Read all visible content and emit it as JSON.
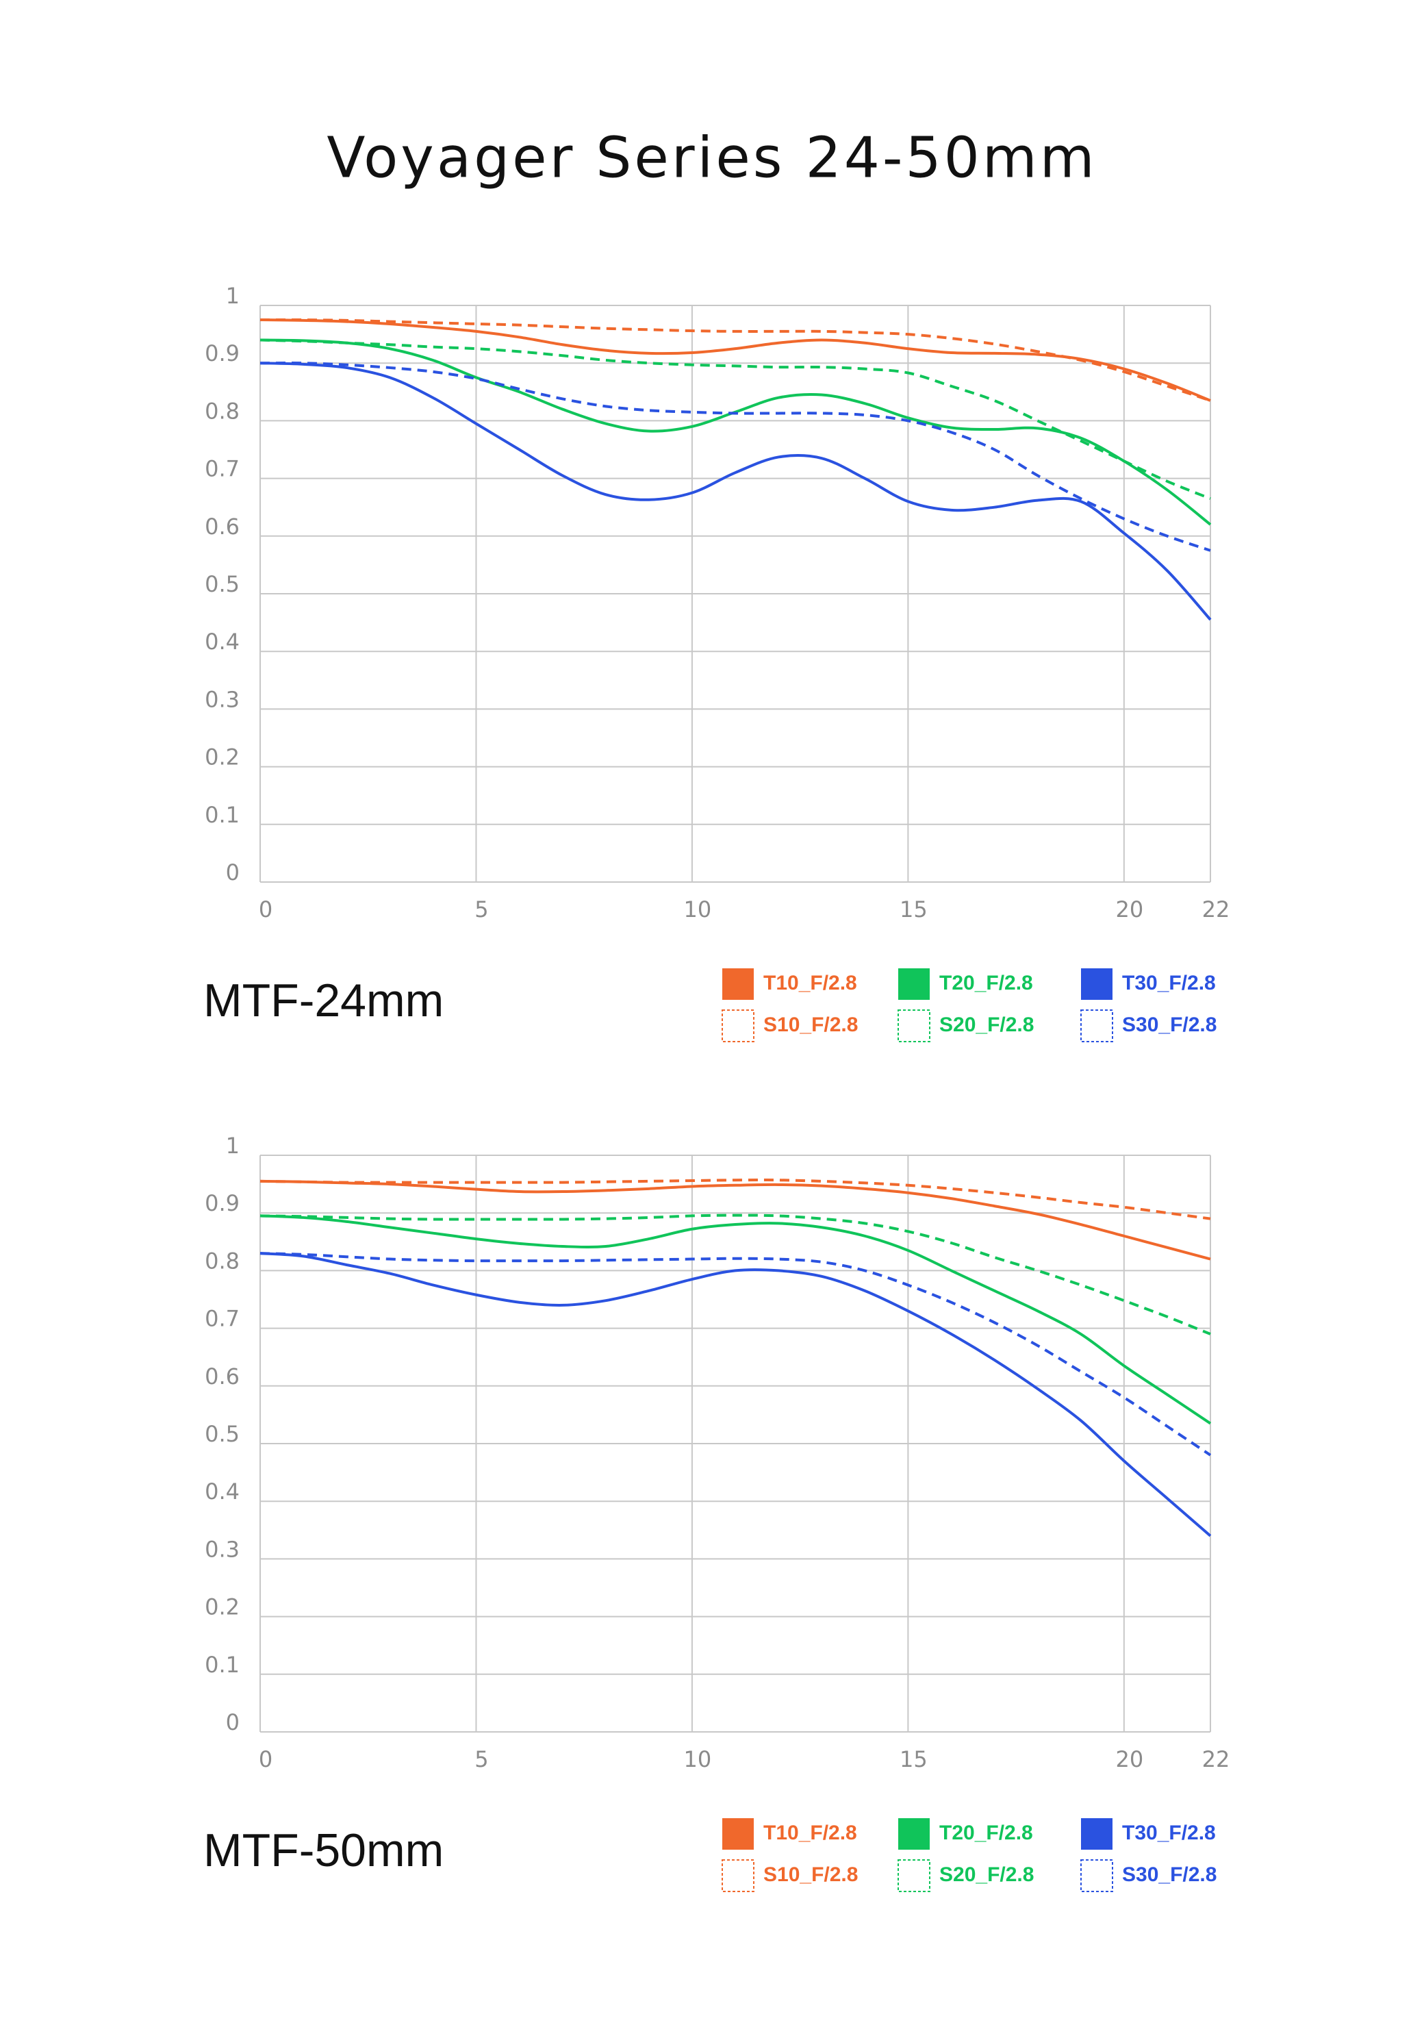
{
  "title": "Voyager Series 24-50mm",
  "chart_data": [
    {
      "type": "line",
      "title": "MTF-24mm",
      "x": [
        0,
        1,
        2,
        3,
        4,
        5,
        6,
        7,
        8,
        9,
        10,
        11,
        12,
        13,
        14,
        15,
        16,
        17,
        18,
        19,
        20,
        21,
        22
      ],
      "xlim": [
        0,
        22
      ],
      "xticks": [
        0,
        5,
        10,
        15,
        20,
        22
      ],
      "ylim": [
        0,
        1
      ],
      "yticks": [
        0,
        0.1,
        0.2,
        0.3,
        0.4,
        0.5,
        0.6,
        0.7,
        0.8,
        0.9,
        1
      ],
      "grid": true,
      "series": [
        {
          "name": "T10_F/2.8",
          "color": "#f0682c",
          "dashed": false,
          "values": [
            0.975,
            0.974,
            0.972,
            0.968,
            0.962,
            0.955,
            0.945,
            0.932,
            0.922,
            0.917,
            0.918,
            0.925,
            0.935,
            0.94,
            0.935,
            0.925,
            0.918,
            0.917,
            0.915,
            0.907,
            0.89,
            0.865,
            0.835
          ]
        },
        {
          "name": "S10_F/2.8",
          "color": "#f0682c",
          "dashed": true,
          "values": [
            0.975,
            0.975,
            0.974,
            0.972,
            0.97,
            0.968,
            0.966,
            0.963,
            0.96,
            0.958,
            0.956,
            0.955,
            0.955,
            0.955,
            0.953,
            0.95,
            0.943,
            0.933,
            0.92,
            0.905,
            0.885,
            0.86,
            0.835
          ]
        },
        {
          "name": "T20_F/2.8",
          "color": "#10c45a",
          "dashed": false,
          "values": [
            0.94,
            0.939,
            0.935,
            0.925,
            0.905,
            0.875,
            0.85,
            0.82,
            0.795,
            0.782,
            0.79,
            0.815,
            0.84,
            0.845,
            0.83,
            0.805,
            0.788,
            0.785,
            0.787,
            0.77,
            0.73,
            0.68,
            0.62
          ]
        },
        {
          "name": "S20_F/2.8",
          "color": "#10c45a",
          "dashed": true,
          "values": [
            0.94,
            0.938,
            0.935,
            0.932,
            0.928,
            0.925,
            0.92,
            0.913,
            0.905,
            0.9,
            0.897,
            0.895,
            0.893,
            0.893,
            0.89,
            0.883,
            0.86,
            0.835,
            0.8,
            0.765,
            0.73,
            0.695,
            0.665
          ]
        },
        {
          "name": "T30_F/2.8",
          "color": "#2a52e0",
          "dashed": false,
          "values": [
            0.9,
            0.898,
            0.892,
            0.875,
            0.84,
            0.795,
            0.75,
            0.705,
            0.672,
            0.663,
            0.675,
            0.71,
            0.737,
            0.735,
            0.7,
            0.66,
            0.645,
            0.65,
            0.662,
            0.66,
            0.605,
            0.54,
            0.455
          ]
        },
        {
          "name": "S30_F/2.8",
          "color": "#2a52e0",
          "dashed": true,
          "values": [
            0.9,
            0.9,
            0.897,
            0.892,
            0.885,
            0.873,
            0.855,
            0.838,
            0.825,
            0.818,
            0.815,
            0.813,
            0.813,
            0.813,
            0.81,
            0.8,
            0.78,
            0.75,
            0.705,
            0.665,
            0.63,
            0.6,
            0.575
          ]
        }
      ]
    },
    {
      "type": "line",
      "title": "MTF-50mm",
      "x": [
        0,
        1,
        2,
        3,
        4,
        5,
        6,
        7,
        8,
        9,
        10,
        11,
        12,
        13,
        14,
        15,
        16,
        17,
        18,
        19,
        20,
        21,
        22
      ],
      "xlim": [
        0,
        22
      ],
      "xticks": [
        0,
        5,
        10,
        15,
        20,
        22
      ],
      "ylim": [
        0,
        1
      ],
      "yticks": [
        0,
        0.1,
        0.2,
        0.3,
        0.4,
        0.5,
        0.6,
        0.7,
        0.8,
        0.9,
        1
      ],
      "grid": true,
      "series": [
        {
          "name": "T10_F/2.8",
          "color": "#f0682c",
          "dashed": false,
          "values": [
            0.955,
            0.954,
            0.952,
            0.95,
            0.946,
            0.941,
            0.937,
            0.937,
            0.939,
            0.942,
            0.946,
            0.948,
            0.949,
            0.947,
            0.942,
            0.935,
            0.925,
            0.912,
            0.898,
            0.88,
            0.86,
            0.84,
            0.82
          ]
        },
        {
          "name": "S10_F/2.8",
          "color": "#f0682c",
          "dashed": true,
          "values": [
            0.955,
            0.954,
            0.953,
            0.953,
            0.953,
            0.953,
            0.953,
            0.953,
            0.954,
            0.955,
            0.956,
            0.957,
            0.957,
            0.955,
            0.952,
            0.948,
            0.942,
            0.935,
            0.927,
            0.918,
            0.91,
            0.9,
            0.89
          ]
        },
        {
          "name": "T20_F/2.8",
          "color": "#10c45a",
          "dashed": false,
          "values": [
            0.895,
            0.892,
            0.885,
            0.875,
            0.865,
            0.855,
            0.847,
            0.842,
            0.842,
            0.855,
            0.872,
            0.88,
            0.882,
            0.875,
            0.86,
            0.835,
            0.8,
            0.765,
            0.73,
            0.69,
            0.635,
            0.585,
            0.535
          ]
        },
        {
          "name": "S20_F/2.8",
          "color": "#10c45a",
          "dashed": true,
          "values": [
            0.895,
            0.894,
            0.892,
            0.89,
            0.889,
            0.889,
            0.889,
            0.889,
            0.89,
            0.892,
            0.895,
            0.896,
            0.895,
            0.89,
            0.882,
            0.868,
            0.848,
            0.823,
            0.8,
            0.775,
            0.748,
            0.72,
            0.69
          ]
        },
        {
          "name": "T30_F/2.8",
          "color": "#2a52e0",
          "dashed": false,
          "values": [
            0.83,
            0.825,
            0.81,
            0.795,
            0.775,
            0.758,
            0.745,
            0.74,
            0.748,
            0.765,
            0.785,
            0.8,
            0.8,
            0.79,
            0.765,
            0.73,
            0.69,
            0.645,
            0.595,
            0.54,
            0.47,
            0.405,
            0.34
          ]
        },
        {
          "name": "S30_F/2.8",
          "color": "#2a52e0",
          "dashed": true,
          "values": [
            0.83,
            0.828,
            0.824,
            0.82,
            0.818,
            0.817,
            0.817,
            0.817,
            0.818,
            0.819,
            0.82,
            0.821,
            0.82,
            0.815,
            0.8,
            0.775,
            0.745,
            0.71,
            0.67,
            0.625,
            0.58,
            0.53,
            0.48
          ]
        }
      ]
    }
  ]
}
